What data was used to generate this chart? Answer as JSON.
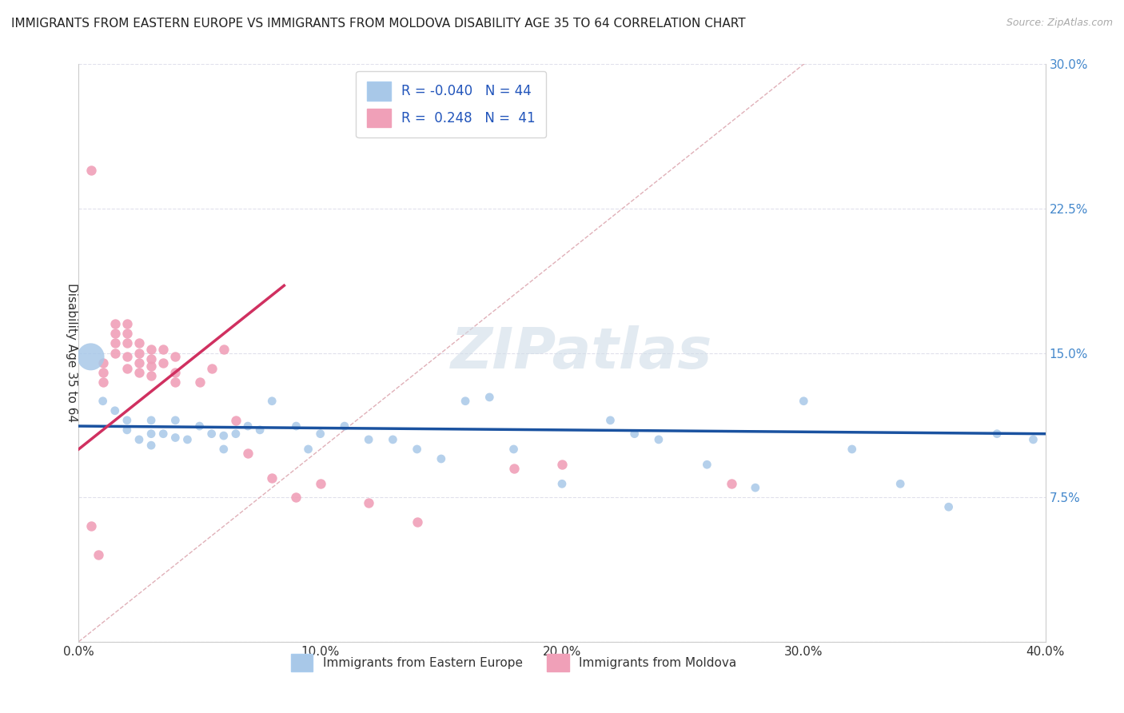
{
  "title": "IMMIGRANTS FROM EASTERN EUROPE VS IMMIGRANTS FROM MOLDOVA DISABILITY AGE 35 TO 64 CORRELATION CHART",
  "source": "Source: ZipAtlas.com",
  "ylabel": "Disability Age 35 to 64",
  "xlim": [
    0.0,
    0.4
  ],
  "ylim": [
    0.0,
    0.3
  ],
  "xticks": [
    0.0,
    0.1,
    0.2,
    0.3,
    0.4
  ],
  "xtick_labels": [
    "0.0%",
    "10.0%",
    "20.0%",
    "30.0%",
    "40.0%"
  ],
  "yticks": [
    0.0,
    0.075,
    0.15,
    0.225,
    0.3
  ],
  "ytick_labels": [
    "",
    "7.5%",
    "15.0%",
    "22.5%",
    "30.0%"
  ],
  "blue_R": -0.04,
  "blue_N": 44,
  "pink_R": 0.248,
  "pink_N": 41,
  "blue_color": "#a8c8e8",
  "pink_color": "#f0a0b8",
  "blue_line_color": "#1a52a0",
  "pink_line_color": "#d03060",
  "diag_line_color": "#e0b0b8",
  "grid_color": "#e0e0ec",
  "blue_scatter_x": [
    0.005,
    0.01,
    0.015,
    0.02,
    0.02,
    0.025,
    0.03,
    0.03,
    0.03,
    0.035,
    0.04,
    0.04,
    0.045,
    0.05,
    0.055,
    0.06,
    0.06,
    0.065,
    0.07,
    0.075,
    0.08,
    0.09,
    0.095,
    0.1,
    0.11,
    0.12,
    0.13,
    0.14,
    0.15,
    0.16,
    0.17,
    0.18,
    0.2,
    0.22,
    0.23,
    0.24,
    0.26,
    0.28,
    0.3,
    0.32,
    0.34,
    0.36,
    0.38,
    0.395
  ],
  "blue_scatter_y": [
    0.148,
    0.125,
    0.12,
    0.115,
    0.11,
    0.105,
    0.115,
    0.108,
    0.102,
    0.108,
    0.115,
    0.106,
    0.105,
    0.112,
    0.108,
    0.107,
    0.1,
    0.108,
    0.112,
    0.11,
    0.125,
    0.112,
    0.1,
    0.108,
    0.112,
    0.105,
    0.105,
    0.1,
    0.095,
    0.125,
    0.127,
    0.1,
    0.082,
    0.115,
    0.108,
    0.105,
    0.092,
    0.08,
    0.125,
    0.1,
    0.082,
    0.07,
    0.108,
    0.105
  ],
  "blue_scatter_size": [
    600,
    60,
    60,
    60,
    60,
    60,
    60,
    60,
    60,
    60,
    60,
    60,
    60,
    60,
    60,
    60,
    60,
    60,
    60,
    60,
    60,
    60,
    60,
    60,
    60,
    60,
    60,
    60,
    60,
    60,
    60,
    60,
    60,
    60,
    60,
    60,
    60,
    60,
    60,
    60,
    60,
    60,
    60,
    60
  ],
  "pink_scatter_x": [
    0.005,
    0.005,
    0.008,
    0.01,
    0.01,
    0.01,
    0.015,
    0.015,
    0.015,
    0.015,
    0.02,
    0.02,
    0.02,
    0.02,
    0.02,
    0.025,
    0.025,
    0.025,
    0.025,
    0.03,
    0.03,
    0.03,
    0.03,
    0.035,
    0.035,
    0.04,
    0.04,
    0.04,
    0.05,
    0.055,
    0.06,
    0.065,
    0.07,
    0.08,
    0.09,
    0.1,
    0.12,
    0.14,
    0.18,
    0.2,
    0.27
  ],
  "pink_scatter_y": [
    0.245,
    0.06,
    0.045,
    0.145,
    0.14,
    0.135,
    0.165,
    0.16,
    0.155,
    0.15,
    0.165,
    0.16,
    0.155,
    0.148,
    0.142,
    0.155,
    0.15,
    0.145,
    0.14,
    0.152,
    0.147,
    0.143,
    0.138,
    0.152,
    0.145,
    0.148,
    0.14,
    0.135,
    0.135,
    0.142,
    0.152,
    0.115,
    0.098,
    0.085,
    0.075,
    0.082,
    0.072,
    0.062,
    0.09,
    0.092,
    0.082
  ],
  "watermark_text": "ZIPatlas",
  "legend_label_blue": "Immigrants from Eastern Europe",
  "legend_label_pink": "Immigrants from Moldova",
  "blue_trend_x": [
    0.0,
    0.4
  ],
  "blue_trend_y": [
    0.112,
    0.108
  ],
  "pink_trend_x": [
    0.0,
    0.085
  ],
  "pink_trend_y": [
    0.1,
    0.185
  ]
}
